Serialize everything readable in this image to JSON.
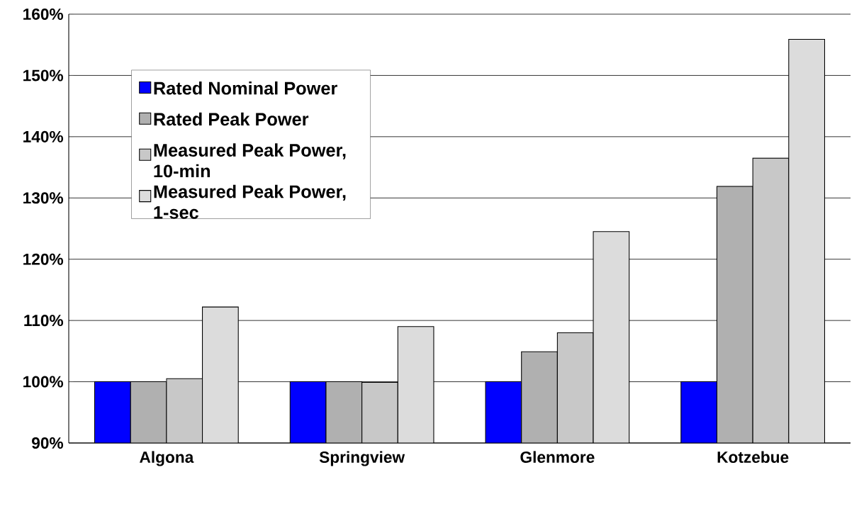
{
  "chart_data": {
    "type": "bar",
    "categories": [
      "Algona",
      "Springview",
      "Glenmore",
      "Kotzebue"
    ],
    "series": [
      {
        "name": "Rated Nominal Power",
        "color": "#0000ff",
        "values": [
          100,
          100,
          100,
          100
        ]
      },
      {
        "name": "Rated Peak Power",
        "color": "#b0b0b0",
        "values": [
          100,
          100,
          104.9,
          131.9
        ]
      },
      {
        "name": "Measured Peak Power, 10-min",
        "color": "#c8c8c8",
        "values": [
          100.5,
          99.9,
          108,
          136.5
        ]
      },
      {
        "name": "Measured Peak Power, 1-sec",
        "color": "#dcdcdc",
        "values": [
          112.2,
          109,
          124.5,
          155.9
        ]
      }
    ],
    "ylim": [
      90,
      160
    ],
    "yticks": [
      {
        "value": 90,
        "label": "90%"
      },
      {
        "value": 100,
        "label": "100%"
      },
      {
        "value": 110,
        "label": "110%"
      },
      {
        "value": 120,
        "label": "120%"
      },
      {
        "value": 130,
        "label": "130%"
      },
      {
        "value": 140,
        "label": "140%"
      },
      {
        "value": 150,
        "label": "150%"
      },
      {
        "value": 160,
        "label": "160%"
      }
    ],
    "grid": "y",
    "legend": "top left"
  }
}
